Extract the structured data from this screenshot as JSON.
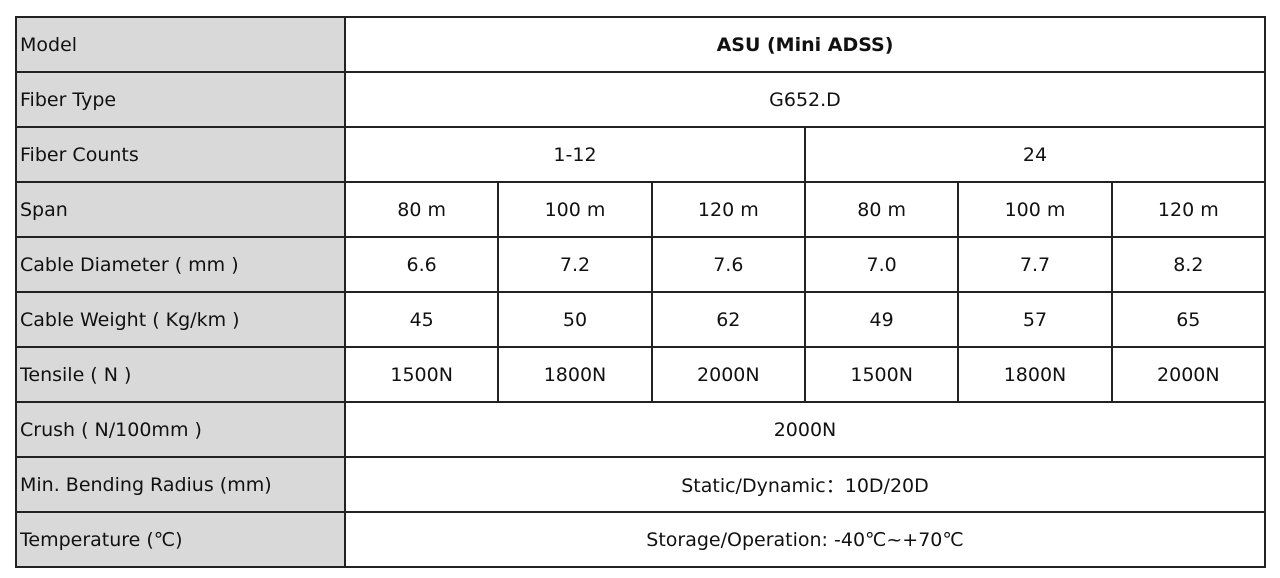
{
  "table": {
    "rows": [
      [
        "Model",
        "ASU (Mini ADSS)"
      ],
      [
        "Fiber Type",
        "G652.D"
      ],
      [
        "Fiber Counts",
        "1-12",
        "24"
      ],
      [
        "Span",
        "80 m",
        "100 m",
        "120 m",
        "80 m",
        "100 m",
        "120 m"
      ],
      [
        "Cable Diameter ( mm )",
        "6.6",
        "7.2",
        "7.6",
        "7.0",
        "7.7",
        "8.2"
      ],
      [
        "Cable Weight ( Kg/km )",
        "45",
        "50",
        "62",
        "49",
        "57",
        "65"
      ],
      [
        "Tensile ( N )",
        "1500N",
        "1800N",
        "2000N",
        "1500N",
        "1800N",
        "2000N"
      ],
      [
        "Crush ( N/100mm )",
        "2000N"
      ],
      [
        "Min. Bending Radius (mm)",
        "Static/Dynamic：10D/20D"
      ],
      [
        "Temperature (℃)",
        "Storage/Operation: -40℃~+70℃"
      ]
    ]
  }
}
